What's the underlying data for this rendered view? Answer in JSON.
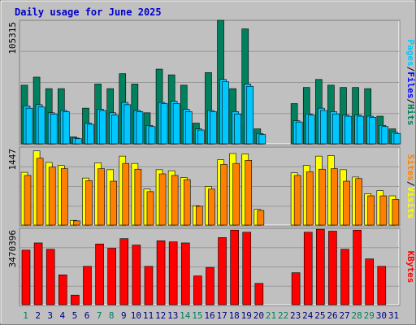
{
  "title": "Daily usage for June 2025",
  "colors": {
    "hits": "#00805c",
    "files": "#00c8ff",
    "pages": "#00c8ff",
    "visits": "#ffff00",
    "sites": "#ff8000",
    "kbytes": "#ff0000",
    "weekday": "#000080",
    "weekend": "#00805c"
  },
  "chart_data": [
    {
      "type": "bar",
      "panel": "hits-files-pages",
      "ymax_label": "105315",
      "ylim": [
        0,
        105315
      ],
      "grid": true,
      "right_label_parts": [
        {
          "text": "Pages",
          "color": "#00c8ff"
        },
        {
          "text": "/",
          "color": "#000000"
        },
        {
          "text": "Files",
          "color": "#0000ff"
        },
        {
          "text": "/",
          "color": "#000000"
        },
        {
          "text": "Hits",
          "color": "#00805c"
        }
      ],
      "categories": [
        "1",
        "2",
        "3",
        "4",
        "5",
        "6",
        "7",
        "8",
        "9",
        "10",
        "11",
        "12",
        "13",
        "14",
        "15",
        "16",
        "17",
        "18",
        "19",
        "20",
        "21",
        "22",
        "23",
        "24",
        "25",
        "26",
        "27",
        "28",
        "29",
        "30",
        "31"
      ],
      "series": [
        {
          "key": "hits",
          "values": [
            51000,
            58000,
            48000,
            48000,
            6000,
            31000,
            52000,
            48000,
            61000,
            52000,
            27000,
            65000,
            60000,
            51000,
            18000,
            62000,
            108000,
            48000,
            100000,
            13000,
            0,
            0,
            35000,
            49000,
            56000,
            51000,
            49000,
            49000,
            48000,
            24000,
            13000
          ]
        },
        {
          "key": "files",
          "values": [
            33000,
            34000,
            27000,
            29000,
            5000,
            18000,
            30000,
            27000,
            36000,
            29000,
            16000,
            36000,
            37000,
            30000,
            13000,
            29000,
            56000,
            28000,
            52000,
            9000,
            0,
            0,
            20000,
            26000,
            31000,
            28000,
            25000,
            25000,
            24000,
            16000,
            10000
          ]
        },
        {
          "key": "pages",
          "values": [
            31000,
            32000,
            26000,
            28000,
            4500,
            17000,
            29000,
            25000,
            34000,
            28000,
            15000,
            35000,
            35000,
            28000,
            12000,
            28000,
            54000,
            26000,
            50000,
            8000,
            0,
            0,
            19000,
            25000,
            29000,
            26000,
            24000,
            24000,
            23000,
            15000,
            9000
          ]
        }
      ]
    },
    {
      "type": "bar",
      "panel": "visits-sites",
      "ymax_label": "1447",
      "ylim": [
        0,
        1447
      ],
      "grid": true,
      "right_label_parts": [
        {
          "text": "Sites",
          "color": "#ff8000"
        },
        {
          "text": "/",
          "color": "#000000"
        },
        {
          "text": "Visits",
          "color": "#ffff00"
        }
      ],
      "categories": [
        "1",
        "2",
        "3",
        "4",
        "5",
        "6",
        "7",
        "8",
        "9",
        "10",
        "11",
        "12",
        "13",
        "14",
        "15",
        "16",
        "17",
        "18",
        "19",
        "20",
        "21",
        "22",
        "23",
        "24",
        "25",
        "26",
        "27",
        "28",
        "29",
        "30",
        "31"
      ],
      "series": [
        {
          "key": "visits",
          "values": [
            1010,
            1420,
            1200,
            1140,
            90,
            900,
            1190,
            1060,
            1320,
            1180,
            690,
            1060,
            1040,
            910,
            370,
            740,
            1250,
            1370,
            1360,
            300,
            0,
            0,
            1000,
            1140,
            1320,
            1330,
            1060,
            920,
            600,
            660,
            560
          ]
        },
        {
          "key": "sites",
          "values": [
            950,
            1280,
            1110,
            1080,
            80,
            850,
            1080,
            840,
            1180,
            1070,
            640,
            980,
            950,
            870,
            360,
            690,
            1160,
            1180,
            1240,
            280,
            0,
            0,
            950,
            1020,
            1070,
            1080,
            840,
            890,
            560,
            560,
            490
          ]
        }
      ]
    },
    {
      "type": "bar",
      "panel": "kbytes",
      "ymax_label": "3470396",
      "ylim": [
        0,
        3470396
      ],
      "grid": true,
      "right_label_parts": [
        {
          "text": "KBytes",
          "color": "#ff0000"
        }
      ],
      "categories": [
        "1",
        "2",
        "3",
        "4",
        "5",
        "6",
        "7",
        "8",
        "9",
        "10",
        "11",
        "12",
        "13",
        "14",
        "15",
        "16",
        "17",
        "18",
        "19",
        "20",
        "21",
        "22",
        "23",
        "24",
        "25",
        "26",
        "27",
        "28",
        "29",
        "30",
        "31"
      ],
      "series": [
        {
          "key": "kbytes",
          "values": [
            2560000,
            2900000,
            2600000,
            1400000,
            450000,
            1800000,
            2850000,
            2650000,
            3100000,
            2800000,
            1800000,
            3000000,
            2950000,
            2900000,
            1350000,
            1750000,
            3150000,
            3500000,
            3400000,
            1000000,
            0,
            0,
            1500000,
            3400000,
            3580000,
            3450000,
            2600000,
            3500000,
            2150000,
            1800000,
            0
          ]
        }
      ]
    }
  ],
  "x_axis": {
    "days": [
      "1",
      "2",
      "3",
      "4",
      "5",
      "6",
      "7",
      "8",
      "9",
      "10",
      "11",
      "12",
      "13",
      "14",
      "15",
      "16",
      "17",
      "18",
      "19",
      "20",
      "21",
      "22",
      "23",
      "24",
      "25",
      "26",
      "27",
      "28",
      "29",
      "30",
      "31"
    ],
    "weekend_days": [
      "1",
      "7",
      "8",
      "14",
      "15",
      "21",
      "22",
      "28",
      "29"
    ]
  }
}
